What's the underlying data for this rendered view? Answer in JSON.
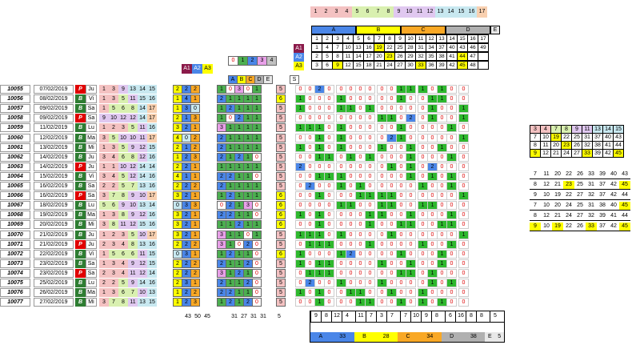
{
  "top_numbers": [
    "1",
    "2",
    "3",
    "4",
    "5",
    "6",
    "7",
    "8",
    "9",
    "10",
    "11",
    "12",
    "13",
    "14",
    "15",
    "16",
    "17"
  ],
  "top_colors": [
    "#f4c2c2",
    "#f4c2c2",
    "#f4c2c2",
    "#f4c2c2",
    "#d9f0b0",
    "#d9f0b0",
    "#d9f0b0",
    "#d9f0b0",
    "#e0c8f0",
    "#e0c8f0",
    "#e0c8f0",
    "#e0c8f0",
    "#c8e8f0",
    "#c8e8f0",
    "#c8e8f0",
    "#c8e8f0",
    "#f8d0b0"
  ],
  "groups_header": {
    "A": "A",
    "B": "B",
    "C": "C",
    "D": "D",
    "E": "E"
  },
  "grid_header": [
    "1",
    "2",
    "3",
    "4",
    "5",
    "6",
    "7",
    "8",
    "9",
    "10",
    "11",
    "12",
    "13",
    "14",
    "15",
    "16",
    "17"
  ],
  "grid_rows": [
    {
      "label": "A1",
      "cells": [
        "1",
        "4",
        "7",
        "10",
        "13",
        "16",
        "19",
        "22",
        "25",
        "28",
        "31",
        "34",
        "37",
        "40",
        "43",
        "46",
        "49"
      ]
    },
    {
      "label": "A2",
      "cells": [
        "2",
        "5",
        "8",
        "11",
        "14",
        "17",
        "20",
        "23",
        "26",
        "29",
        "32",
        "35",
        "38",
        "41",
        "44",
        "47",
        ""
      ]
    },
    {
      "label": "A3",
      "cells": [
        "3",
        "6",
        "9",
        "12",
        "15",
        "18",
        "21",
        "24",
        "27",
        "30",
        "33",
        "36",
        "39",
        "42",
        "45",
        "48",
        ""
      ]
    }
  ],
  "a_labels": [
    "A1",
    "A2",
    "A3"
  ],
  "mini_header": [
    "0",
    "1",
    "2",
    "3",
    "4"
  ],
  "abcde": [
    "A",
    "B",
    "C",
    "D",
    "E",
    "S"
  ],
  "draws": [
    {
      "id": "10055",
      "date": "07/02/2019",
      "t": "P",
      "d": "Ju",
      "n": [
        "1",
        "3",
        "9",
        "13",
        "14",
        "15"
      ],
      "a": [
        "2",
        "2",
        "2"
      ],
      "g": [
        "1",
        "0",
        "3",
        "0",
        "1"
      ],
      "s": "5"
    },
    {
      "id": "10056",
      "date": "08/02/2019",
      "t": "B",
      "d": "Vi",
      "n": [
        "1",
        "3",
        "5",
        "11",
        "15",
        "16"
      ],
      "a": [
        "1",
        "4",
        "1"
      ],
      "g": [
        "2",
        "1",
        "1",
        "1",
        "1"
      ],
      "s": "6"
    },
    {
      "id": "10057",
      "date": "09/02/2019",
      "t": "B",
      "d": "Sa",
      "n": [
        "1",
        "5",
        "6",
        "8",
        "14",
        "17"
      ],
      "a": [
        "1",
        "3",
        "0"
      ],
      "g": [
        "1",
        "2",
        "1",
        "1",
        "1"
      ],
      "s": "5"
    },
    {
      "id": "10058",
      "date": "09/02/2019",
      "t": "P",
      "d": "Sa",
      "n": [
        "9",
        "10",
        "12",
        "12",
        "14",
        "17"
      ],
      "a": [
        "2",
        "1",
        "3"
      ],
      "g": [
        "1",
        "0",
        "2",
        "1",
        "1"
      ],
      "s": "5"
    },
    {
      "id": "10059",
      "date": "11/02/2019",
      "t": "B",
      "d": "Lu",
      "n": [
        "1",
        "2",
        "3",
        "5",
        "11",
        "16"
      ],
      "a": [
        "3",
        "2",
        "1"
      ],
      "g": [
        "3",
        "1",
        "1",
        "1",
        "1"
      ],
      "s": "5"
    },
    {
      "id": "10060",
      "date": "12/02/2019",
      "t": "B",
      "d": "Ma",
      "n": [
        "3",
        "5",
        "10",
        "10",
        "11",
        "17"
      ],
      "a": [
        "4",
        "0",
        "2"
      ],
      "g": [
        "2",
        "1",
        "1",
        "1",
        "1"
      ],
      "s": "5"
    },
    {
      "id": "10061",
      "date": "13/02/2019",
      "t": "B",
      "d": "Mi",
      "n": [
        "1",
        "3",
        "5",
        "9",
        "12",
        "15"
      ],
      "a": [
        "2",
        "1",
        "2"
      ],
      "g": [
        "2",
        "1",
        "1",
        "1",
        "1"
      ],
      "s": "5"
    },
    {
      "id": "10062",
      "date": "14/02/2019",
      "t": "B",
      "d": "Ju",
      "n": [
        "3",
        "4",
        "6",
        "8",
        "12",
        "16"
      ],
      "a": [
        "1",
        "2",
        "3"
      ],
      "g": [
        "2",
        "1",
        "2",
        "1",
        "0"
      ],
      "s": "5"
    },
    {
      "id": "10063",
      "date": "14/02/2019",
      "t": "P",
      "d": "Ju",
      "n": [
        "1",
        "1",
        "10",
        "12",
        "14",
        "14"
      ],
      "a": [
        "2",
        "2",
        "1"
      ],
      "g": [
        "1",
        "1",
        "1",
        "1",
        "1"
      ],
      "s": "5"
    },
    {
      "id": "10064",
      "date": "15/02/2019",
      "t": "B",
      "d": "Vi",
      "n": [
        "3",
        "4",
        "5",
        "12",
        "14",
        "16"
      ],
      "a": [
        "4",
        "1",
        "1"
      ],
      "g": [
        "2",
        "2",
        "1",
        "1",
        "0"
      ],
      "s": "5"
    },
    {
      "id": "10065",
      "date": "16/02/2019",
      "t": "B",
      "d": "Sa",
      "n": [
        "2",
        "2",
        "5",
        "7",
        "13",
        "16"
      ],
      "a": [
        "2",
        "2",
        "2"
      ],
      "g": [
        "2",
        "1",
        "1",
        "1",
        "1"
      ],
      "s": "5"
    },
    {
      "id": "10066",
      "date": "16/02/2019",
      "t": "P",
      "d": "Sa",
      "n": [
        "3",
        "7",
        "8",
        "9",
        "10",
        "17"
      ],
      "a": [
        "3",
        "2",
        "1"
      ],
      "g": [
        "1",
        "2",
        "1",
        "1",
        "1"
      ],
      "s": "6"
    },
    {
      "id": "10067",
      "date": "18/02/2019",
      "t": "B",
      "d": "Lu",
      "n": [
        "5",
        "6",
        "9",
        "10",
        "13",
        "14"
      ],
      "a": [
        "0",
        "3",
        "3"
      ],
      "g": [
        "0",
        "2",
        "1",
        "3",
        "0"
      ],
      "s": "6"
    },
    {
      "id": "10068",
      "date": "19/02/2019",
      "t": "B",
      "d": "Ma",
      "n": [
        "1",
        "3",
        "8",
        "9",
        "12",
        "16"
      ],
      "a": [
        "3",
        "2",
        "1"
      ],
      "g": [
        "2",
        "2",
        "1",
        "1",
        "0"
      ],
      "s": "6"
    },
    {
      "id": "10069",
      "date": "20/02/2019",
      "t": "B",
      "d": "Mi",
      "n": [
        "3",
        "8",
        "11",
        "12",
        "15",
        "16"
      ],
      "a": [
        "3",
        "2",
        "1"
      ],
      "g": [
        "1",
        "1",
        "2",
        "1",
        "1"
      ],
      "s": "6"
    },
    {
      "id": "10070",
      "date": "21/02/2019",
      "t": "B",
      "d": "Ju",
      "n": [
        "1",
        "2",
        "3",
        "5",
        "10",
        "17"
      ],
      "a": [
        "3",
        "2",
        "1"
      ],
      "g": [
        "3",
        "1",
        "1",
        "0",
        "1"
      ],
      "s": "5"
    },
    {
      "id": "10071",
      "date": "21/02/2019",
      "t": "P",
      "d": "Ju",
      "n": [
        "2",
        "3",
        "4",
        "8",
        "13",
        "16"
      ],
      "a": [
        "2",
        "2",
        "2"
      ],
      "g": [
        "3",
        "1",
        "0",
        "2",
        "0"
      ],
      "s": "5"
    },
    {
      "id": "10072",
      "date": "22/02/2019",
      "t": "B",
      "d": "Vi",
      "n": [
        "1",
        "5",
        "6",
        "6",
        "11",
        "15"
      ],
      "a": [
        "0",
        "3",
        "1"
      ],
      "g": [
        "1",
        "2",
        "1",
        "1",
        "0"
      ],
      "s": "6"
    },
    {
      "id": "10073",
      "date": "23/02/2019",
      "t": "B",
      "d": "Sa",
      "n": [
        "1",
        "3",
        "4",
        "9",
        "12",
        "15"
      ],
      "a": [
        "2",
        "2",
        "2"
      ],
      "g": [
        "2",
        "1",
        "1",
        "2",
        "0"
      ],
      "s": "5"
    },
    {
      "id": "10074",
      "date": "23/02/2019",
      "t": "P",
      "d": "Sa",
      "n": [
        "2",
        "3",
        "4",
        "11",
        "12",
        "14"
      ],
      "a": [
        "2",
        "2",
        "2"
      ],
      "g": [
        "3",
        "1",
        "2",
        "1",
        "0"
      ],
      "s": "5"
    },
    {
      "id": "10075",
      "date": "25/02/2019",
      "t": "B",
      "d": "Lu",
      "n": [
        "2",
        "2",
        "5",
        "9",
        "14",
        "16"
      ],
      "a": [
        "2",
        "3",
        "1"
      ],
      "g": [
        "2",
        "1",
        "1",
        "2",
        "0"
      ],
      "s": "5"
    },
    {
      "id": "10076",
      "date": "26/02/2019",
      "t": "B",
      "d": "Ma",
      "n": [
        "1",
        "3",
        "6",
        "7",
        "10",
        "13"
      ],
      "a": [
        "1",
        "2",
        "2"
      ],
      "g": [
        "2",
        "2",
        "1",
        "1",
        "0"
      ],
      "s": "5"
    },
    {
      "id": "10077",
      "date": "27/02/2019",
      "t": "B",
      "d": "Mi",
      "n": [
        "3",
        "7",
        "8",
        "11",
        "13",
        "15"
      ],
      "a": [
        "1",
        "2",
        "3"
      ],
      "g": [
        "1",
        "2",
        "1",
        "2",
        "0"
      ],
      "s": "5"
    }
  ],
  "bin_rows": [
    "0,0,2,0,0,0,0,0,0,0,1,1,1,0,1,0,0",
    "1,0,0,0,1,0,0,0,0,0,1,0,0,1,1,0,0",
    "1,0,0,0,1,1,0,1,0,0,0,0,0,1,0,0,1",
    "0,0,0,0,0,0,0,0,1,1,0,2,0,1,0,0,1",
    "1,1,1,0,1,0,0,0,0,0,1,0,0,0,0,1,0",
    "0,0,1,0,1,0,0,0,0,2,1,0,0,0,0,0,1",
    "1,0,1,0,1,0,0,0,1,0,0,1,0,0,1,0,0",
    "0,0,1,1,0,1,0,1,0,0,0,1,0,0,0,1,0",
    "2,0,0,0,0,0,0,0,0,1,0,1,0,2,0,0,0",
    "0,0,1,1,1,0,0,0,0,0,0,1,0,1,0,1,0",
    "0,2,0,0,1,0,1,0,0,0,0,0,1,0,0,1,0",
    "0,0,1,0,0,0,1,1,1,1,0,0,0,0,0,0,1",
    "0,0,0,0,1,1,0,0,1,1,0,0,1,1,0,0,0",
    "1,0,1,0,0,0,0,1,1,0,0,1,0,0,0,1,0",
    "0,0,1,0,0,0,0,1,0,0,1,1,0,0,1,1,0",
    "1,1,1,0,1,0,0,0,0,1,0,0,0,0,0,0,1",
    "0,1,1,1,0,0,0,1,0,0,0,0,1,0,0,1,0",
    "1,0,0,0,1,2,0,0,0,0,1,0,0,0,1,0,0",
    "1,0,1,1,0,0,0,0,1,0,0,1,0,0,1,0,0",
    "0,1,1,1,0,0,0,0,0,0,1,1,0,1,0,0,0",
    "0,2,0,0,1,0,0,0,1,0,0,0,0,1,0,1,0",
    "1,0,1,0,0,1,1,0,0,1,0,0,1,0,0,0,0",
    "0,0,1,0,0,0,1,1,0,0,1,0,1,0,1,0,0"
  ],
  "a_totals": [
    "43",
    "50",
    "45"
  ],
  "g_totals": [
    "31",
    "27",
    "31",
    "31",
    "5"
  ],
  "bottom_counts": [
    "9",
    "8",
    "12",
    "4",
    "11",
    "7",
    "3",
    "7",
    "7",
    "10",
    "9",
    "8",
    "6",
    "16",
    "8",
    "8",
    "5"
  ],
  "bottom_groups": [
    {
      "label": "A",
      "value": "33",
      "color": "#4a86e8"
    },
    {
      "label": "B",
      "value": "28",
      "color": "#ffff00"
    },
    {
      "label": "C",
      "value": "34",
      "color": "#f9a825"
    },
    {
      "label": "D",
      "value": "38",
      "color": "#b0b0b0"
    },
    {
      "label": "E",
      "value": "5",
      "color": "#e8e8e8"
    }
  ],
  "right_header": [
    "3",
    "4",
    "7",
    "8",
    "9",
    "11",
    "13",
    "14",
    "15"
  ],
  "right_top": [
    [
      "7",
      "10",
      "19",
      "22",
      "25",
      "31",
      "37",
      "40",
      "43"
    ],
    [
      "8",
      "11",
      "20",
      "23",
      "26",
      "32",
      "38",
      "41",
      "44"
    ],
    [
      "9",
      "12",
      "21",
      "24",
      "27",
      "33",
      "39",
      "42",
      "45"
    ]
  ],
  "right_bottom": [
    [
      "7",
      "11",
      "20",
      "22",
      "26",
      "33",
      "39",
      "40",
      "43"
    ],
    [
      "8",
      "12",
      "21",
      "23",
      "25",
      "31",
      "37",
      "42",
      "45"
    ],
    [
      "9",
      "10",
      "19",
      "22",
      "27",
      "32",
      "37",
      "42",
      "44"
    ],
    [
      "7",
      "10",
      "20",
      "24",
      "25",
      "31",
      "38",
      "40",
      "45"
    ],
    [
      "8",
      "12",
      "21",
      "24",
      "27",
      "32",
      "39",
      "41",
      "44"
    ],
    [
      "9",
      "10",
      "19",
      "22",
      "26",
      "33",
      "37",
      "42",
      "45"
    ]
  ]
}
